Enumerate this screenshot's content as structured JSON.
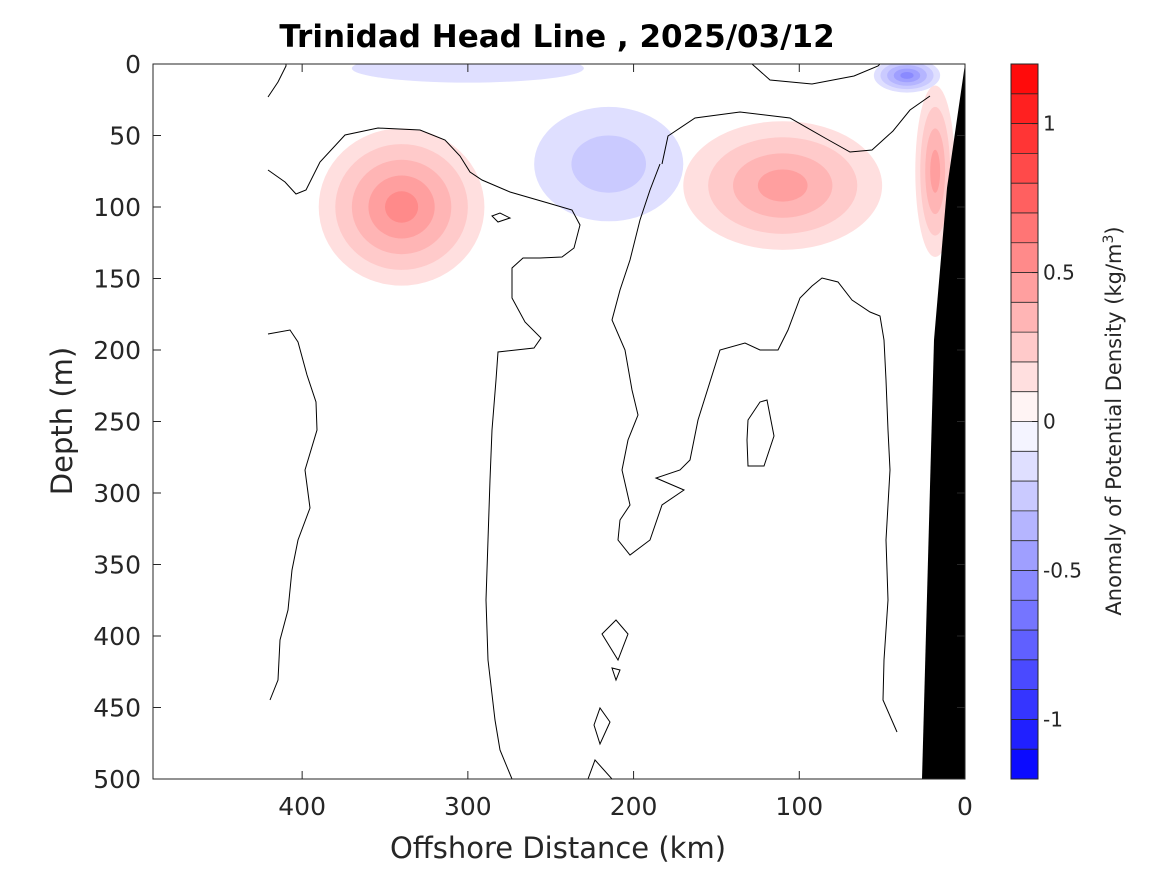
{
  "chart_data": {
    "type": "heatmap",
    "title": "Trinidad Head Line , 2025/03/12",
    "xlabel": "Offshore Distance (km)",
    "ylabel": "Depth (m)",
    "xlim": [
      490,
      0
    ],
    "ylim": [
      0,
      500
    ],
    "x_reversed": true,
    "y_reversed": true,
    "xticks": [
      400,
      300,
      200,
      100,
      0
    ],
    "yticks": [
      0,
      50,
      100,
      150,
      200,
      250,
      300,
      350,
      400,
      450,
      500
    ],
    "colorbar": {
      "label": "Anomaly of Potential Density (kg/m³)",
      "label_parts": [
        "Anomaly of Potential Density (kg/m",
        "3",
        ")"
      ],
      "range": [
        -1.2,
        1.2
      ],
      "level_step": 0.1,
      "ticks": [
        -1,
        -0.5,
        0,
        0.5,
        1
      ],
      "colormap": "blue-white-red"
    },
    "features": [
      {
        "name": "positive-anomaly-core-offshore",
        "x": 340,
        "y": 100,
        "rx": 50,
        "ry": 55,
        "value": 0.55
      },
      {
        "name": "positive-anomaly-midshelf",
        "x": 110,
        "y": 85,
        "rx": 60,
        "ry": 45,
        "value": 0.45
      },
      {
        "name": "positive-anomaly-nearshore",
        "x": 18,
        "y": 75,
        "rx": 12,
        "ry": 60,
        "value": 0.4
      },
      {
        "name": "negative-anomaly-center",
        "x": 215,
        "y": 70,
        "rx": 45,
        "ry": 40,
        "value": -0.2
      },
      {
        "name": "negative-anomaly-surface-offshore",
        "x": 300,
        "y": 3,
        "rx": 70,
        "ry": 10,
        "value": -0.15
      },
      {
        "name": "negative-anomaly-surface-nearshore",
        "x": 35,
        "y": 8,
        "rx": 20,
        "ry": 12,
        "value": -0.6
      }
    ],
    "bathymetry": "black"
  }
}
